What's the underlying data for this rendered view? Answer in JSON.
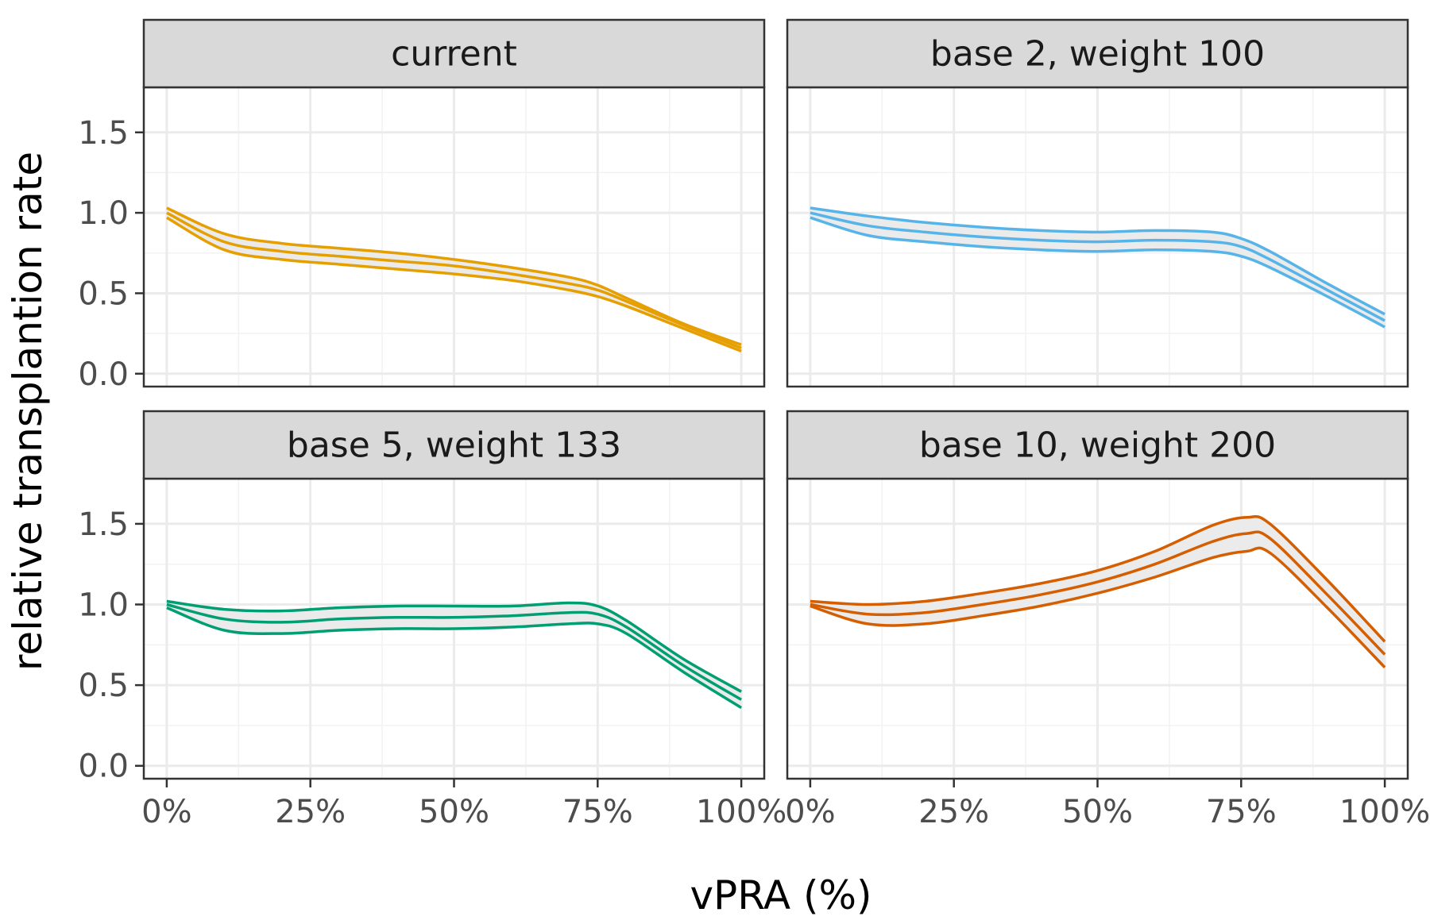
{
  "chart_data": {
    "type": "line",
    "xlabel": "vPRA (%)",
    "ylabel": "relative transplantion rate",
    "xlim": [
      0,
      100
    ],
    "ylim": [
      -0.08,
      1.78
    ],
    "x_ticks": [
      0,
      25,
      50,
      75,
      100
    ],
    "x_tick_labels": [
      "0%",
      "25%",
      "50%",
      "75%",
      "100%"
    ],
    "y_ticks": [
      0.0,
      0.5,
      1.0,
      1.5
    ],
    "y_tick_labels": [
      "0.0",
      "0.5",
      "1.0",
      "1.5"
    ],
    "grid": true,
    "band_fill": "#ebebeb",
    "panels": [
      {
        "title": "current",
        "color": "#E69F00",
        "x": [
          0,
          10,
          20,
          30,
          40,
          50,
          60,
          70,
          75,
          80,
          90,
          100
        ],
        "series": [
          {
            "name": "upper",
            "values": [
              1.03,
              0.87,
              0.81,
              0.78,
              0.75,
              0.71,
              0.66,
              0.6,
              0.55,
              0.47,
              0.31,
              0.18
            ]
          },
          {
            "name": "estimate",
            "values": [
              1.0,
              0.82,
              0.76,
              0.73,
              0.7,
              0.67,
              0.62,
              0.56,
              0.52,
              0.45,
              0.3,
              0.16
            ]
          },
          {
            "name": "lower",
            "values": [
              0.97,
              0.77,
              0.71,
              0.68,
              0.65,
              0.62,
              0.58,
              0.52,
              0.48,
              0.42,
              0.28,
              0.14
            ]
          }
        ]
      },
      {
        "title": "base 2, weight 100",
        "color": "#56B4E9",
        "x": [
          0,
          10,
          20,
          30,
          40,
          50,
          60,
          70,
          75,
          80,
          90,
          100
        ],
        "series": [
          {
            "name": "upper",
            "values": [
              1.03,
              0.98,
              0.94,
              0.91,
              0.89,
              0.88,
              0.89,
              0.88,
              0.84,
              0.76,
              0.56,
              0.37
            ]
          },
          {
            "name": "estimate",
            "values": [
              1.0,
              0.92,
              0.88,
              0.85,
              0.83,
              0.82,
              0.83,
              0.82,
              0.79,
              0.71,
              0.52,
              0.33
            ]
          },
          {
            "name": "lower",
            "values": [
              0.97,
              0.86,
              0.82,
              0.79,
              0.77,
              0.76,
              0.77,
              0.76,
              0.73,
              0.66,
              0.48,
              0.29
            ]
          }
        ]
      },
      {
        "title": "base 5, weight 133",
        "color": "#009E73",
        "x": [
          0,
          10,
          20,
          30,
          40,
          50,
          60,
          70,
          75,
          80,
          90,
          100
        ],
        "series": [
          {
            "name": "upper",
            "values": [
              1.02,
              0.97,
              0.96,
              0.98,
              0.99,
              0.99,
              0.99,
              1.01,
              0.99,
              0.9,
              0.66,
              0.46
            ]
          },
          {
            "name": "estimate",
            "values": [
              1.0,
              0.91,
              0.89,
              0.91,
              0.92,
              0.92,
              0.93,
              0.95,
              0.94,
              0.86,
              0.62,
              0.41
            ]
          },
          {
            "name": "lower",
            "values": [
              0.98,
              0.84,
              0.82,
              0.84,
              0.85,
              0.85,
              0.86,
              0.88,
              0.88,
              0.82,
              0.58,
              0.36
            ]
          }
        ]
      },
      {
        "title": "base 10, weight 200",
        "color": "#D55E00",
        "x": [
          0,
          10,
          20,
          30,
          40,
          50,
          60,
          70,
          76,
          80,
          90,
          100
        ],
        "series": [
          {
            "name": "upper",
            "values": [
              1.02,
              1.0,
              1.02,
              1.07,
              1.13,
              1.21,
              1.33,
              1.49,
              1.54,
              1.5,
              1.15,
              0.77
            ]
          },
          {
            "name": "estimate",
            "values": [
              1.0,
              0.94,
              0.95,
              1.0,
              1.06,
              1.14,
              1.25,
              1.39,
              1.44,
              1.41,
              1.06,
              0.69
            ]
          },
          {
            "name": "lower",
            "values": [
              0.99,
              0.88,
              0.88,
              0.93,
              0.99,
              1.07,
              1.17,
              1.29,
              1.33,
              1.32,
              0.98,
              0.61
            ]
          }
        ]
      }
    ]
  }
}
